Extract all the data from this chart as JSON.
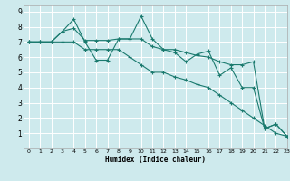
{
  "xlabel": "Humidex (Indice chaleur)",
  "bg_color": "#ceeaed",
  "grid_color": "#ffffff",
  "line_color": "#1a7a6e",
  "xlim": [
    -0.5,
    23
  ],
  "ylim": [
    0,
    9.4
  ],
  "xticks": [
    0,
    1,
    2,
    3,
    4,
    5,
    6,
    7,
    8,
    9,
    10,
    11,
    12,
    13,
    14,
    15,
    16,
    17,
    18,
    19,
    20,
    21,
    22,
    23
  ],
  "yticks": [
    1,
    2,
    3,
    4,
    5,
    6,
    7,
    8,
    9
  ],
  "series": [
    [
      7.0,
      7.0,
      7.0,
      7.7,
      8.5,
      7.0,
      5.8,
      5.8,
      7.2,
      7.2,
      8.7,
      7.2,
      6.5,
      6.3,
      5.7,
      6.2,
      6.4,
      4.8,
      5.3,
      4.0,
      4.0,
      1.3,
      1.6,
      0.8
    ],
    [
      7.0,
      7.0,
      7.0,
      7.7,
      7.9,
      7.1,
      7.1,
      7.1,
      7.2,
      7.2,
      7.2,
      6.7,
      6.5,
      6.5,
      6.3,
      6.1,
      6.0,
      5.7,
      5.5,
      5.5,
      5.7,
      1.3,
      1.6,
      0.8
    ],
    [
      7.0,
      7.0,
      7.0,
      7.0,
      7.0,
      6.5,
      6.5,
      6.5,
      6.5,
      6.0,
      5.5,
      5.0,
      5.0,
      4.7,
      4.5,
      4.2,
      4.0,
      3.5,
      3.0,
      2.5,
      2.0,
      1.5,
      1.0,
      0.8
    ]
  ]
}
